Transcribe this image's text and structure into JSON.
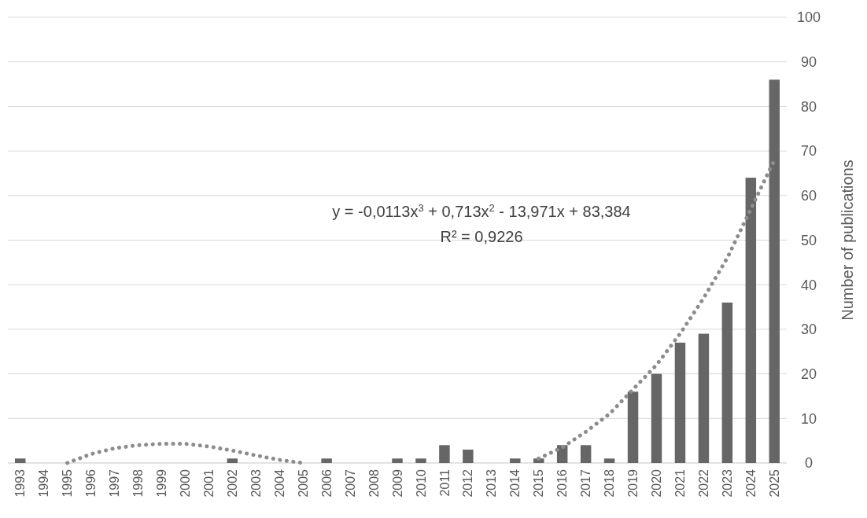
{
  "chart_data": {
    "type": "bar",
    "ylabel": "Number of publications",
    "categories": [
      "1993",
      "1994",
      "1995",
      "1996",
      "1997",
      "1998",
      "1999",
      "2000",
      "2001",
      "2002",
      "2003",
      "2004",
      "2005",
      "2006",
      "2007",
      "2008",
      "2009",
      "2010",
      "2011",
      "2012",
      "2013",
      "2014",
      "2015",
      "2016",
      "2017",
      "2018",
      "2019",
      "2020",
      "2021",
      "2022",
      "2023",
      "2024",
      "2025"
    ],
    "series": [
      {
        "color": "#666666",
        "values": [
          1,
          0,
          0,
          0,
          0,
          0,
          0,
          0,
          0,
          1,
          0,
          0,
          0,
          1,
          0,
          0,
          1,
          1,
          4,
          3,
          0,
          1,
          1,
          4,
          4,
          1,
          16,
          20,
          27,
          29,
          36,
          64,
          86
        ]
      },
      {
        "type": "line",
        "color": "#8c8c8c",
        "line_style": "dotted",
        "marker": "none",
        "values": [
          null,
          null,
          0,
          2,
          3.3,
          4,
          4.3,
          4.3,
          3.7,
          2.8,
          1.7,
          0.7,
          0,
          null,
          null,
          null,
          null,
          null,
          null,
          null,
          null,
          null,
          1,
          3.5,
          7,
          11,
          16.5,
          22,
          29,
          37,
          46,
          57,
          68
        ]
      }
    ],
    "ylim": [
      0,
      100
    ],
    "yticks": [
      0,
      10,
      20,
      30,
      40,
      50,
      60,
      70,
      80,
      90,
      100
    ],
    "grid": "y",
    "annotations": [
      "y = -0,0113x$^{3}$ + 0,713x$^{2}$ - 13,971x + 83,384",
      "R² = 0,9226"
    ]
  }
}
